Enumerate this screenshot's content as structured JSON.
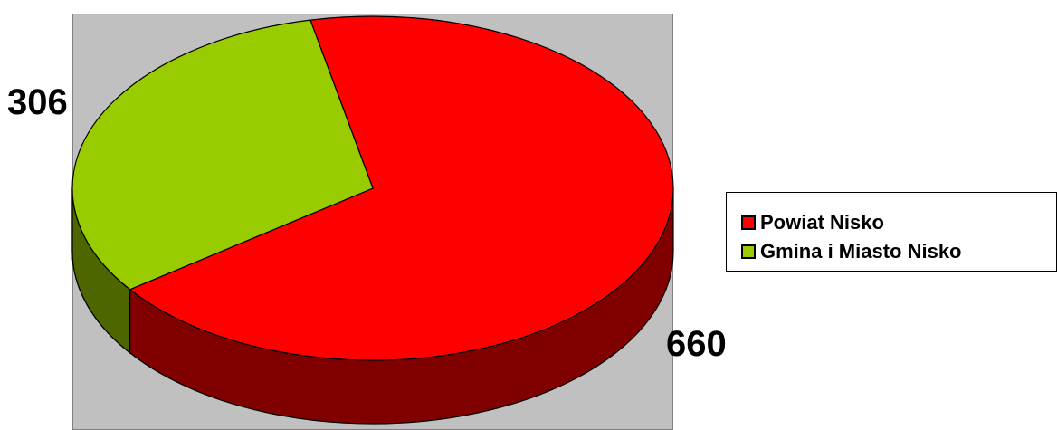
{
  "chart_data": {
    "type": "pie",
    "style": "3d",
    "legend_position": "right",
    "series": [
      {
        "name": "Powiat Nisko",
        "value": 660,
        "label": "660",
        "color": "#ff0000",
        "side_color": "#800000"
      },
      {
        "name": "Gmina i Miasto Nisko",
        "value": 306,
        "label": "306",
        "color": "#99cc00",
        "side_color": "#4d6600"
      }
    ]
  }
}
